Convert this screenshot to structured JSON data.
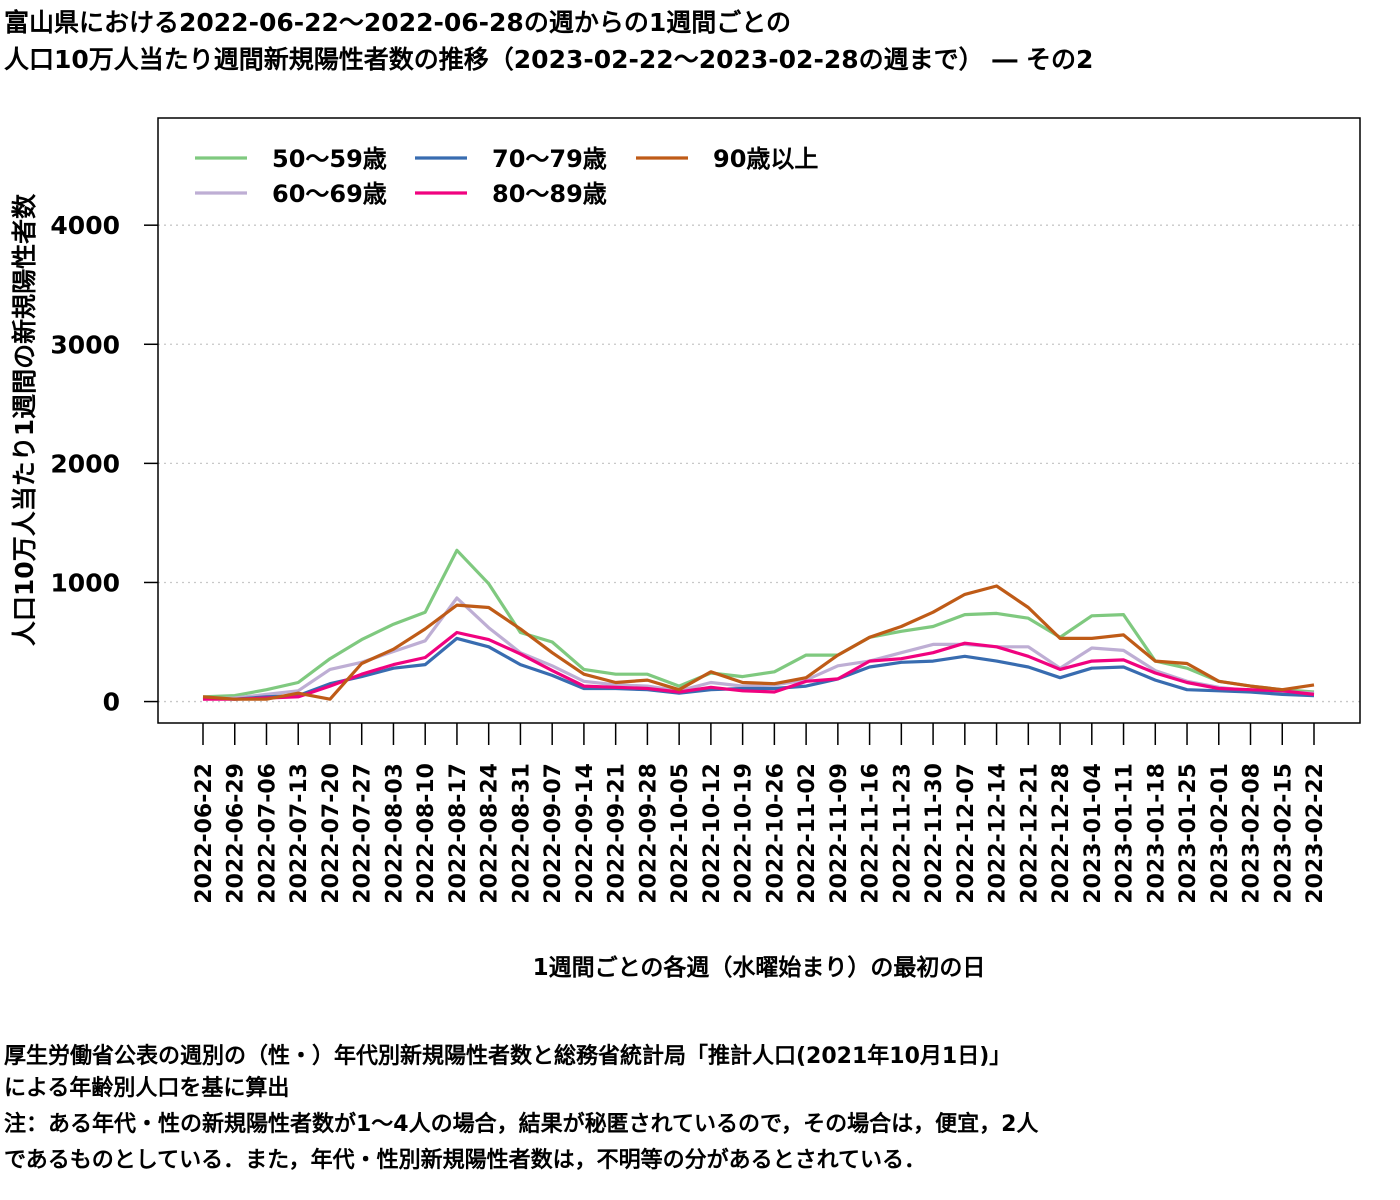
{
  "title": {
    "line1": "富山県における2022-06-22〜2022-06-28の週からの1週間ごとの",
    "line2": "人口10万人当たり週間新規陽性者数の推移（2023-02-22〜2023-02-28の週まで） ― その2"
  },
  "notes": {
    "line1": "厚生労働省公表の週別の（性・）年代別新規陽性者数と総務省統計局「推計人口(2021年10月1日)」",
    "line2": "による年齢別人口を基に算出",
    "line3": "注：ある年代・性の新規陽性者数が1〜4人の場合，結果が秘匿されているので，その場合は，便宜，2人",
    "line4": "であるものとしている．また，年代・性別新規陽性者数は，不明等の分があるとされている．"
  },
  "chart_data": {
    "type": "line",
    "xlabel": "1週間ごとの各週（水曜始まり）の最初の日",
    "ylabel": "人口10万人当たり1週間の新規陽性者数",
    "ylim": [
      -180,
      4900
    ],
    "yticks": [
      0,
      1000,
      2000,
      3000,
      4000
    ],
    "grid": "horizontal dotted",
    "legend_position": "top-left",
    "categories": [
      "2022-06-22",
      "2022-06-29",
      "2022-07-06",
      "2022-07-13",
      "2022-07-20",
      "2022-07-27",
      "2022-08-03",
      "2022-08-10",
      "2022-08-17",
      "2022-08-24",
      "2022-08-31",
      "2022-09-07",
      "2022-09-14",
      "2022-09-21",
      "2022-09-28",
      "2022-10-05",
      "2022-10-12",
      "2022-10-19",
      "2022-10-26",
      "2022-11-02",
      "2022-11-09",
      "2022-11-16",
      "2022-11-23",
      "2022-11-30",
      "2022-12-07",
      "2022-12-14",
      "2022-12-21",
      "2022-12-28",
      "2023-01-04",
      "2023-01-11",
      "2023-01-18",
      "2023-01-25",
      "2023-02-01",
      "2023-02-08",
      "2023-02-15",
      "2023-02-22"
    ],
    "series": [
      {
        "name": "50〜59歳",
        "color": "#7fc97f",
        "values": [
          40,
          50,
          100,
          160,
          360,
          520,
          650,
          750,
          1270,
          990,
          580,
          500,
          270,
          230,
          230,
          130,
          240,
          210,
          250,
          390,
          390,
          540,
          590,
          630,
          730,
          740,
          700,
          540,
          720,
          730,
          340,
          280,
          170,
          130,
          100,
          80
        ]
      },
      {
        "name": "60〜69歳",
        "color": "#beaed4",
        "values": [
          20,
          30,
          60,
          90,
          270,
          330,
          420,
          510,
          870,
          620,
          410,
          300,
          170,
          140,
          130,
          90,
          160,
          130,
          140,
          180,
          300,
          340,
          410,
          480,
          480,
          460,
          460,
          280,
          450,
          430,
          260,
          170,
          120,
          90,
          80,
          70
        ]
      },
      {
        "name": "70〜79歳",
        "color": "#386cb0",
        "values": [
          30,
          20,
          40,
          50,
          150,
          210,
          280,
          310,
          530,
          460,
          310,
          220,
          110,
          110,
          100,
          70,
          100,
          110,
          110,
          130,
          190,
          290,
          330,
          340,
          380,
          340,
          290,
          200,
          280,
          290,
          180,
          100,
          90,
          80,
          60,
          50
        ]
      },
      {
        "name": "80〜89歳",
        "color": "#f0027f",
        "values": [
          20,
          20,
          30,
          40,
          130,
          230,
          310,
          370,
          580,
          520,
          400,
          260,
          130,
          120,
          110,
          80,
          120,
          90,
          80,
          170,
          190,
          340,
          360,
          410,
          490,
          460,
          380,
          270,
          340,
          350,
          240,
          160,
          110,
          100,
          90,
          60
        ]
      },
      {
        "name": "90歳以上",
        "color": "#bf5b17",
        "values": [
          40,
          20,
          20,
          70,
          20,
          320,
          440,
          610,
          810,
          790,
          610,
          410,
          230,
          160,
          180,
          100,
          250,
          160,
          150,
          200,
          390,
          540,
          630,
          750,
          900,
          970,
          790,
          530,
          530,
          560,
          340,
          320,
          170,
          130,
          100,
          140
        ]
      }
    ]
  }
}
